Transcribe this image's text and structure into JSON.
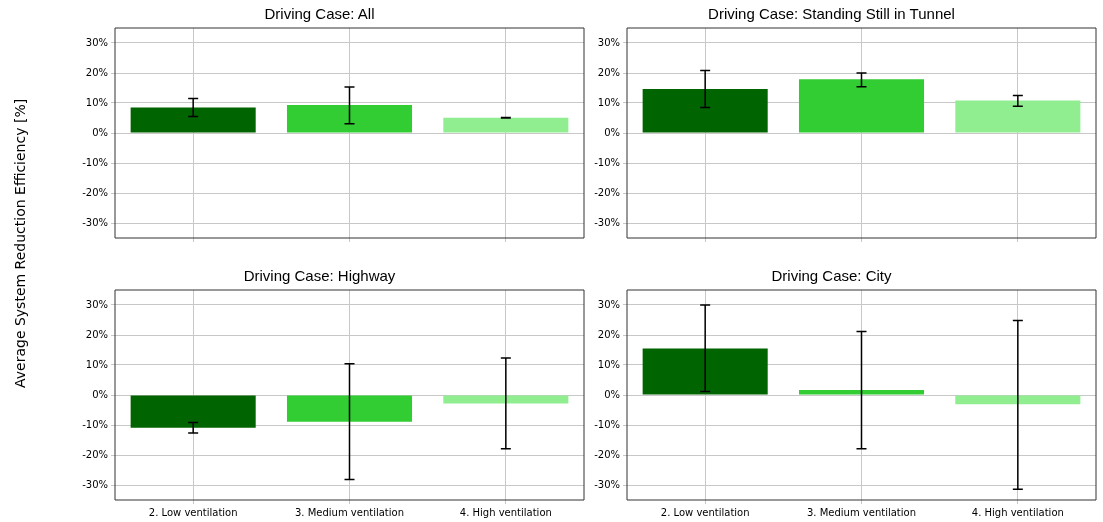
{
  "chart_data": [
    {
      "type": "bar",
      "title": "Driving Case: All",
      "ylabel": "Average System Reduction Efficiency [%]",
      "categories": [
        null,
        null,
        null
      ],
      "values": [
        8.5,
        9.3,
        5.1
      ],
      "colors": [
        "#006400",
        "#32cd32",
        "#90ee90"
      ],
      "errors": [
        [
          5.5,
          11.5
        ],
        [
          3.1,
          15.3
        ],
        [
          5.0,
          5.2
        ]
      ],
      "ylim": [
        -35,
        35
      ],
      "yticks": [
        {
          "value": -30,
          "label": "-30%"
        },
        {
          "value": -20,
          "label": "-20%"
        },
        {
          "value": -10,
          "label": "-10%"
        },
        {
          "value": 0,
          "label": "0%"
        },
        {
          "value": 10,
          "label": "10%"
        },
        {
          "value": 20,
          "label": "20%"
        },
        {
          "value": 30,
          "label": "30%"
        }
      ],
      "grid": true,
      "legend": false,
      "tick_labels": "y"
    },
    {
      "type": "bar",
      "title": "Driving Case: Standing Still in Tunnel",
      "categories": [
        null,
        null,
        null
      ],
      "values": [
        14.7,
        17.9,
        10.8
      ],
      "colors": [
        "#006400",
        "#32cd32",
        "#90ee90"
      ],
      "errors": [
        [
          8.5,
          20.8
        ],
        [
          15.4,
          20.0
        ],
        [
          8.9,
          12.5
        ]
      ],
      "ylim": [
        -35,
        35
      ],
      "yticks": [
        {
          "value": -30,
          "label": "-30%"
        },
        {
          "value": -20,
          "label": "-20%"
        },
        {
          "value": -10,
          "label": "-10%"
        },
        {
          "value": 0,
          "label": "0%"
        },
        {
          "value": 10,
          "label": "10%"
        },
        {
          "value": 20,
          "label": "20%"
        },
        {
          "value": 30,
          "label": "30%"
        }
      ],
      "grid": true,
      "legend": false,
      "tick_labels": "y"
    },
    {
      "type": "bar",
      "title": "Driving Case: Highway",
      "categories": [
        "2. Low ventilation",
        "3. Medium ventilation",
        "4. High ventilation"
      ],
      "values": [
        -10.9,
        -8.9,
        -2.8
      ],
      "colors": [
        "#006400",
        "#32cd32",
        "#90ee90"
      ],
      "errors": [
        [
          -12.7,
          -9.2
        ],
        [
          -28.2,
          10.4
        ],
        [
          -17.9,
          12.3
        ]
      ],
      "ylim": [
        -35,
        35
      ],
      "yticks": [
        {
          "value": -30,
          "label": "-30%"
        },
        {
          "value": -20,
          "label": "-20%"
        },
        {
          "value": -10,
          "label": "-10%"
        },
        {
          "value": 0,
          "label": "0%"
        },
        {
          "value": 10,
          "label": "10%"
        },
        {
          "value": 20,
          "label": "20%"
        },
        {
          "value": 30,
          "label": "30%"
        }
      ],
      "grid": true,
      "legend": false
    },
    {
      "type": "bar",
      "title": "Driving Case: City",
      "categories": [
        "2. Low ventilation",
        "3. Medium ventilation",
        "4. High ventilation"
      ],
      "values": [
        15.5,
        1.7,
        -3.1
      ],
      "colors": [
        "#006400",
        "#32cd32",
        "#90ee90"
      ],
      "errors": [
        [
          1.2,
          30.0
        ],
        [
          -17.9,
          21.2
        ],
        [
          -31.4,
          24.8
        ]
      ],
      "ylim": [
        -35,
        35
      ],
      "yticks": [
        {
          "value": -30,
          "label": "-30%"
        },
        {
          "value": -20,
          "label": "-20%"
        },
        {
          "value": -10,
          "label": "-10%"
        },
        {
          "value": 0,
          "label": "0%"
        },
        {
          "value": 10,
          "label": "10%"
        },
        {
          "value": 20,
          "label": "20%"
        },
        {
          "value": 30,
          "label": "30%"
        }
      ],
      "grid": true,
      "legend": false
    }
  ]
}
